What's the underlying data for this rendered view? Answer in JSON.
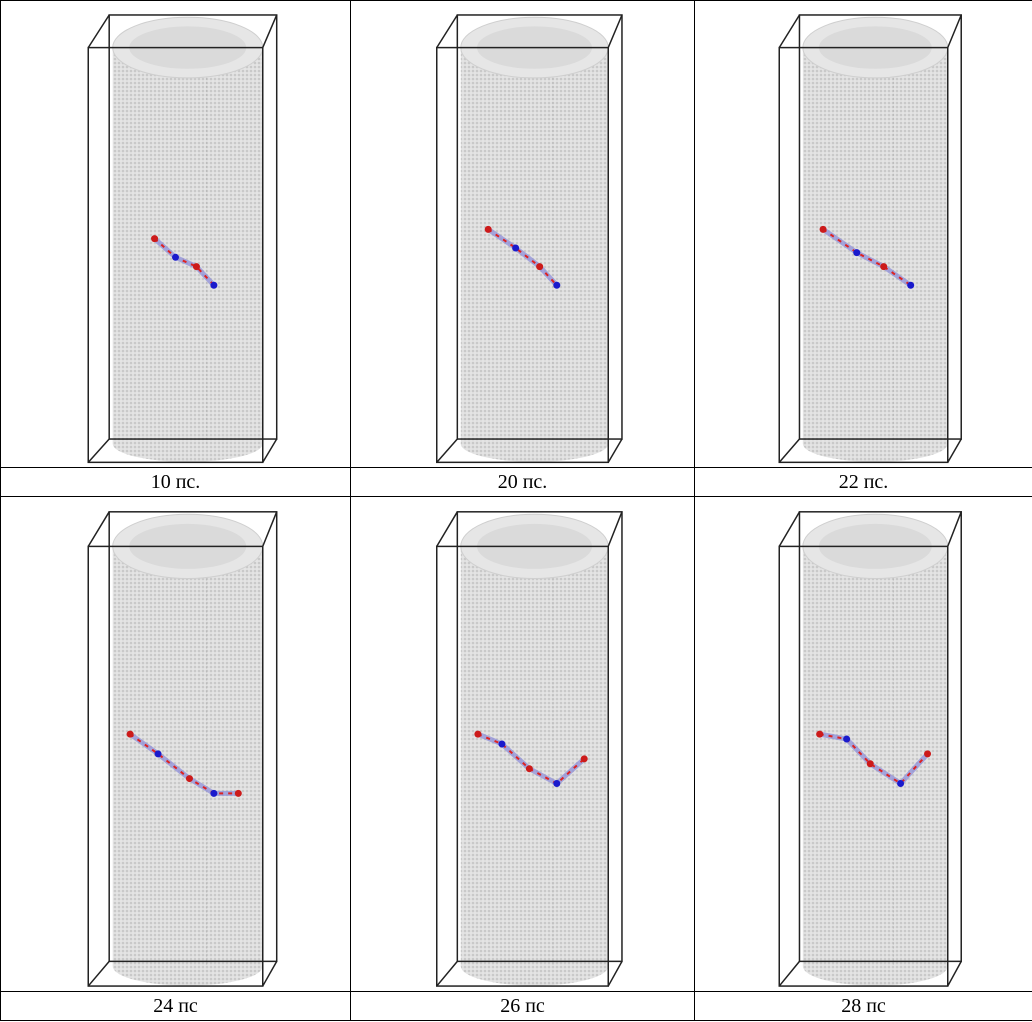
{
  "table": {
    "captions": [
      [
        "10 пс.",
        "20 пс.",
        "22 пс."
      ],
      [
        "24 пс",
        "26 пс",
        "28 пс"
      ]
    ]
  }
}
